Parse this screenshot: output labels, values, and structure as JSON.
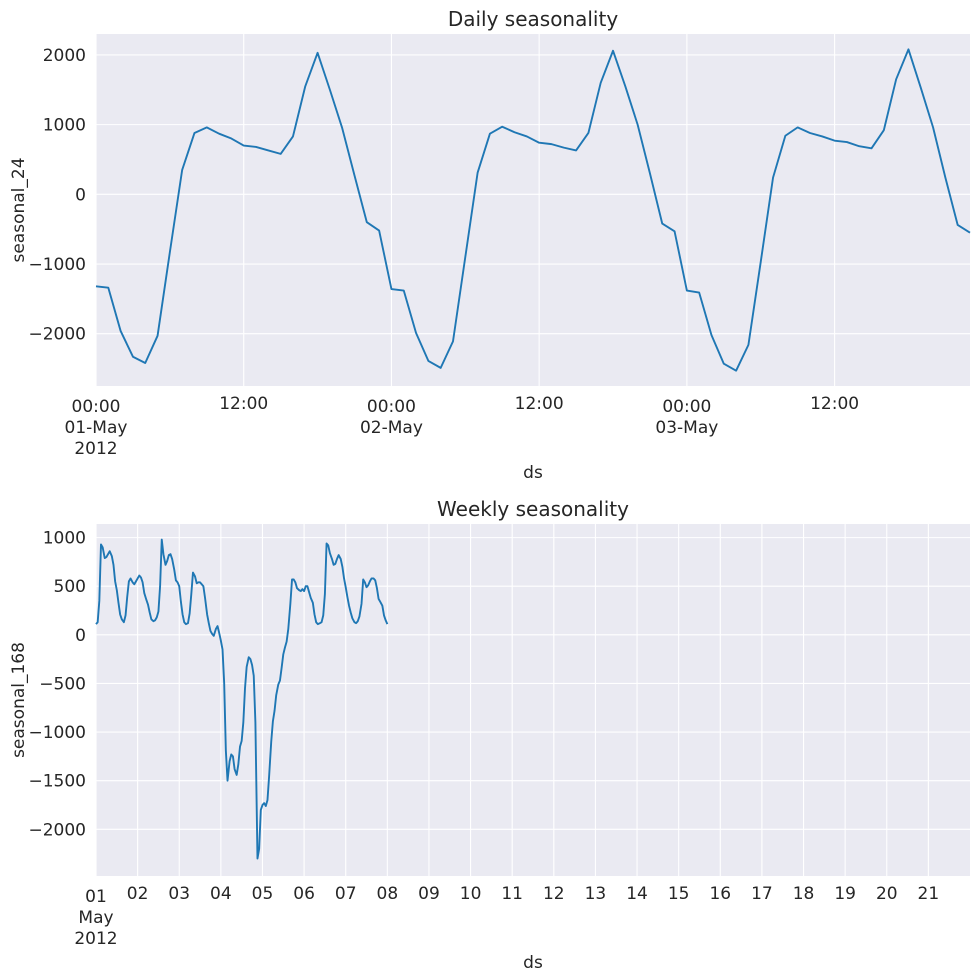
{
  "chart_data": [
    {
      "type": "line",
      "title": "Daily seasonality",
      "xlabel": "ds",
      "ylabel": "seasonal_24",
      "xlim": [
        0,
        71
      ],
      "ylim": [
        -2750,
        2300
      ],
      "grid": true,
      "yticks": [
        -2000,
        -1000,
        0,
        1000,
        2000
      ],
      "ytick_labels": [
        "−2000",
        "−1000",
        "0",
        "1000",
        "2000"
      ],
      "xticks": [
        {
          "x": 0,
          "lines": [
            "00:00",
            "01-May",
            "2012"
          ]
        },
        {
          "x": 12,
          "lines": [
            "12:00"
          ]
        },
        {
          "x": 24,
          "lines": [
            "00:00",
            "02-May"
          ]
        },
        {
          "x": 36,
          "lines": [
            "12:00"
          ]
        },
        {
          "x": 48,
          "lines": [
            "00:00",
            "03-May"
          ]
        },
        {
          "x": 60,
          "lines": [
            "12:00"
          ]
        }
      ],
      "series": [
        {
          "x": [
            0,
            1,
            2,
            3,
            4,
            5,
            6,
            7,
            8,
            9,
            10,
            11,
            12,
            13,
            14,
            15,
            16,
            17,
            18,
            19,
            20,
            21,
            22,
            23,
            24,
            25,
            26,
            27,
            28,
            29,
            30,
            31,
            32,
            33,
            34,
            35,
            36,
            37,
            38,
            39,
            40,
            41,
            42,
            43,
            44,
            45,
            46,
            47,
            48,
            49,
            50,
            51,
            52,
            53,
            54,
            55,
            56,
            57,
            58,
            59,
            60,
            61,
            62,
            63,
            64,
            65,
            66,
            67,
            68,
            69,
            70,
            71
          ],
          "y": [
            -1320,
            -1340,
            -1960,
            -2330,
            -2420,
            -2030,
            -830,
            350,
            880,
            960,
            870,
            800,
            700,
            680,
            630,
            580,
            830,
            1550,
            2030,
            1500,
            950,
            270,
            -400,
            -520,
            -1360,
            -1380,
            -1990,
            -2390,
            -2490,
            -2110,
            -900,
            310,
            870,
            970,
            890,
            830,
            740,
            720,
            670,
            630,
            880,
            1600,
            2060,
            1550,
            1000,
            300,
            -420,
            -530,
            -1380,
            -1410,
            -2020,
            -2430,
            -2530,
            -2160,
            -970,
            240,
            840,
            960,
            880,
            830,
            770,
            750,
            690,
            660,
            920,
            1650,
            2080,
            1530,
            960,
            240,
            -440,
            -550
          ]
        }
      ]
    },
    {
      "type": "line",
      "title": "Weekly seasonality",
      "xlabel": "ds",
      "ylabel": "seasonal_168",
      "xlim": [
        0,
        21
      ],
      "ylim": [
        -2480,
        1140
      ],
      "grid": true,
      "yticks": [
        -2000,
        -1500,
        -1000,
        -500,
        0,
        500,
        1000
      ],
      "ytick_labels": [
        "−2000",
        "−1500",
        "−1000",
        "−500",
        "0",
        "500",
        "1000"
      ],
      "xticks": [
        {
          "x": 0,
          "lines": [
            "01",
            "May",
            "2012"
          ]
        },
        {
          "x": 1,
          "lines": [
            "02"
          ]
        },
        {
          "x": 2,
          "lines": [
            "03"
          ]
        },
        {
          "x": 3,
          "lines": [
            "04"
          ]
        },
        {
          "x": 4,
          "lines": [
            "05"
          ]
        },
        {
          "x": 5,
          "lines": [
            "06"
          ]
        },
        {
          "x": 6,
          "lines": [
            "07"
          ]
        },
        {
          "x": 7,
          "lines": [
            "08"
          ]
        },
        {
          "x": 8,
          "lines": [
            "09"
          ]
        },
        {
          "x": 9,
          "lines": [
            "10"
          ]
        },
        {
          "x": 10,
          "lines": [
            "11"
          ]
        },
        {
          "x": 11,
          "lines": [
            "12"
          ]
        },
        {
          "x": 12,
          "lines": [
            "13"
          ]
        },
        {
          "x": 13,
          "lines": [
            "14"
          ]
        },
        {
          "x": 14,
          "lines": [
            "15"
          ]
        },
        {
          "x": 15,
          "lines": [
            "16"
          ]
        },
        {
          "x": 16,
          "lines": [
            "17"
          ]
        },
        {
          "x": 17,
          "lines": [
            "18"
          ]
        },
        {
          "x": 18,
          "lines": [
            "19"
          ]
        },
        {
          "x": 19,
          "lines": [
            "20"
          ]
        },
        {
          "x": 20,
          "lines": [
            "21"
          ]
        }
      ],
      "series": [
        {
          "x": [
            0.0,
            0.04,
            0.08,
            0.12,
            0.16,
            0.21,
            0.25,
            0.29,
            0.33,
            0.38,
            0.42,
            0.46,
            0.5,
            0.54,
            0.58,
            0.62,
            0.67,
            0.71,
            0.75,
            0.79,
            0.83,
            0.88,
            0.92,
            0.96,
            1.0,
            1.04,
            1.08,
            1.12,
            1.16,
            1.21,
            1.25,
            1.29,
            1.33,
            1.38,
            1.42,
            1.46,
            1.5,
            1.54,
            1.58,
            1.62,
            1.67,
            1.71,
            1.75,
            1.79,
            1.83,
            1.88,
            1.92,
            1.96,
            2.0,
            2.04,
            2.08,
            2.12,
            2.16,
            2.21,
            2.25,
            2.29,
            2.33,
            2.38,
            2.42,
            2.46,
            2.5,
            2.54,
            2.58,
            2.62,
            2.67,
            2.71,
            2.75,
            2.79,
            2.83,
            2.88,
            2.92,
            2.96,
            3.0,
            3.04,
            3.08,
            3.12,
            3.16,
            3.21,
            3.25,
            3.29,
            3.33,
            3.38,
            3.42,
            3.46,
            3.5,
            3.54,
            3.58,
            3.62,
            3.67,
            3.71,
            3.75,
            3.79,
            3.83,
            3.88,
            3.92,
            3.96,
            4.0,
            4.04,
            4.08,
            4.12,
            4.16,
            4.21,
            4.25,
            4.29,
            4.33,
            4.38,
            4.42,
            4.46,
            4.5,
            4.54,
            4.58,
            4.62,
            4.67,
            4.71,
            4.75,
            4.79,
            4.83,
            4.88,
            4.92,
            4.96,
            5.0,
            5.04,
            5.08,
            5.12,
            5.16,
            5.21,
            5.25,
            5.29,
            5.33,
            5.38,
            5.42,
            5.46,
            5.5,
            5.54,
            5.58,
            5.62,
            5.67,
            5.71,
            5.75,
            5.79,
            5.83,
            5.88,
            5.92,
            5.96,
            6.0,
            6.04,
            6.08,
            6.12,
            6.16,
            6.21,
            6.25,
            6.29,
            6.33,
            6.38,
            6.42,
            6.46,
            6.5,
            6.54,
            6.58,
            6.62,
            6.67,
            6.71,
            6.75,
            6.79,
            6.83,
            6.88,
            6.92,
            6.96,
            7.0
          ],
          "y": [
            110,
            130,
            350,
            930,
            900,
            790,
            800,
            830,
            860,
            810,
            720,
            550,
            460,
            330,
            210,
            160,
            130,
            200,
            390,
            550,
            580,
            540,
            520,
            550,
            580,
            610,
            590,
            540,
            430,
            360,
            310,
            230,
            160,
            140,
            150,
            180,
            240,
            500,
            980,
            830,
            720,
            760,
            820,
            830,
            780,
            670,
            560,
            540,
            500,
            340,
            210,
            130,
            110,
            120,
            220,
            420,
            640,
            600,
            530,
            540,
            540,
            520,
            500,
            380,
            210,
            120,
            40,
            10,
            -10,
            60,
            90,
            20,
            -60,
            -150,
            -500,
            -1190,
            -1500,
            -1300,
            -1230,
            -1250,
            -1380,
            -1440,
            -1330,
            -1150,
            -1090,
            -900,
            -550,
            -330,
            -230,
            -250,
            -310,
            -420,
            -900,
            -2300,
            -2200,
            -1800,
            -1750,
            -1730,
            -1760,
            -1700,
            -1450,
            -1100,
            -890,
            -780,
            -620,
            -510,
            -470,
            -340,
            -200,
            -130,
            -70,
            60,
            320,
            570,
            570,
            540,
            480,
            460,
            450,
            470,
            450,
            500,
            500,
            440,
            380,
            330,
            210,
            130,
            110,
            120,
            130,
            200,
            420,
            940,
            920,
            840,
            780,
            720,
            730,
            780,
            820,
            780,
            700,
            580,
            490,
            390,
            300,
            230,
            170,
            130,
            120,
            140,
            190,
            320,
            570,
            540,
            490,
            510,
            550,
            580,
            580,
            560,
            480,
            370,
            340,
            300,
            200,
            150,
            110
          ]
        }
      ]
    }
  ]
}
